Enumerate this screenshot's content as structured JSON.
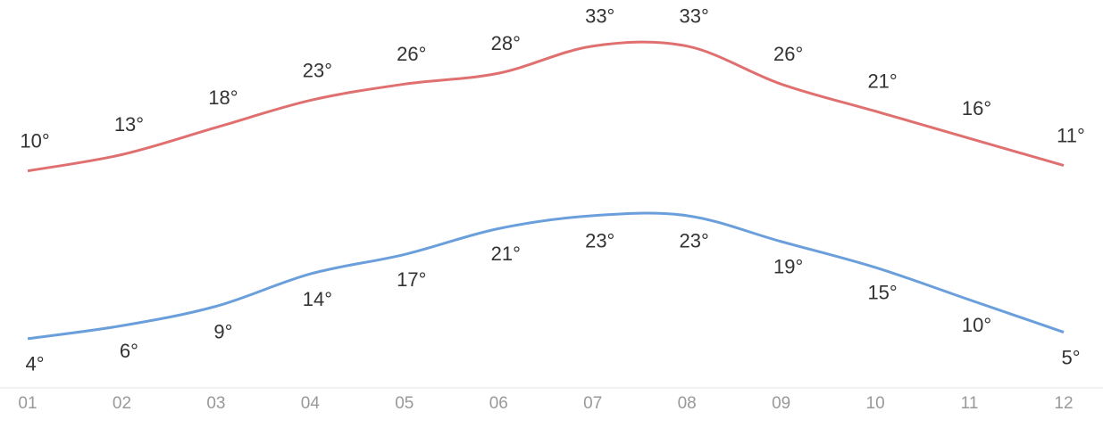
{
  "chart_data": {
    "type": "line",
    "categories": [
      "01",
      "02",
      "03",
      "04",
      "05",
      "06",
      "07",
      "08",
      "09",
      "10",
      "11",
      "12"
    ],
    "series": [
      {
        "color": "#e07070",
        "values": [
          10,
          13,
          18,
          23,
          26,
          28,
          33,
          33,
          26,
          21,
          16,
          11
        ],
        "value_labels": [
          "10°",
          "13°",
          "18°",
          "23°",
          "26°",
          "28°",
          "33°",
          "33°",
          "26°",
          "21°",
          "16°",
          "11°"
        ]
      },
      {
        "color": "#6a9fdc",
        "axis": "y2",
        "values": [
          4,
          6,
          9,
          14,
          17,
          21,
          23,
          23,
          19,
          15,
          10,
          5
        ],
        "value_labels": [
          "4°",
          "6°",
          "9°",
          "14°",
          "17°",
          "21°",
          "23°",
          "23°",
          "19°",
          "15°",
          "10°",
          "5°"
        ]
      }
    ],
    "ylim": [
      -30,
      41.5
    ],
    "y2lim": [
      -3.6,
      56.3
    ]
  }
}
